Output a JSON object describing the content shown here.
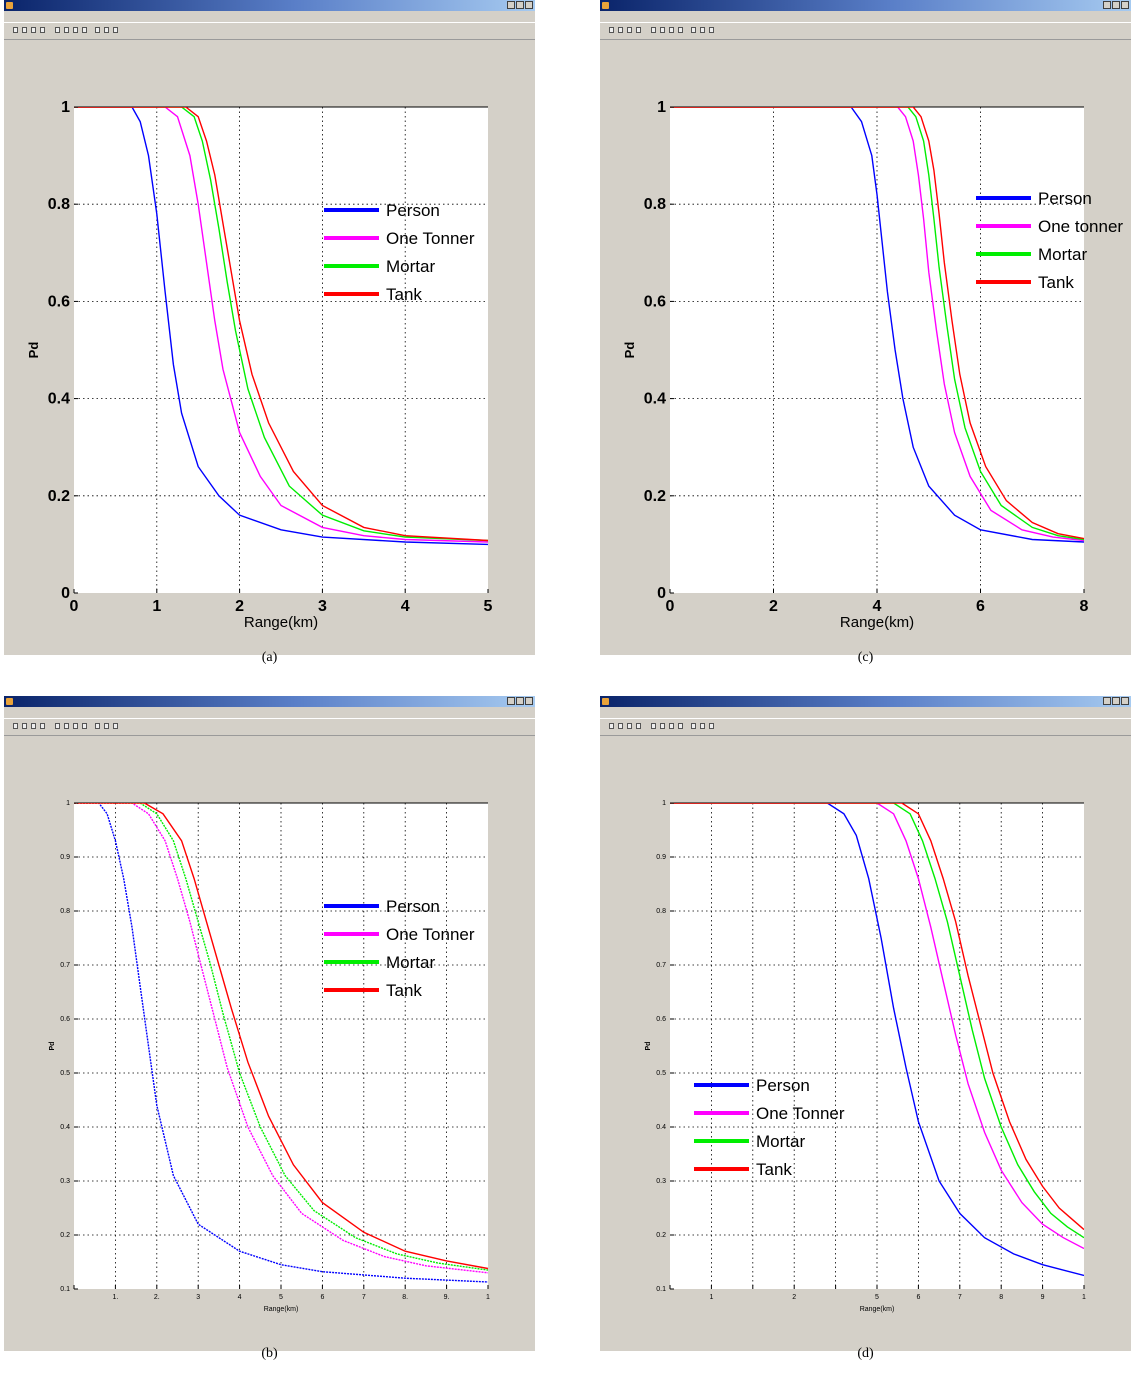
{
  "panels": [
    {
      "id": "a",
      "caption": "(a)",
      "window": {
        "left": 4,
        "top": 0
      },
      "chart_data": {
        "type": "line",
        "xlabel": "Range(km)",
        "ylabel": "Pd",
        "xlim": [
          0,
          5
        ],
        "ylim": [
          0,
          1
        ],
        "xticks": [
          0,
          1,
          2,
          3,
          4,
          5
        ],
        "yticks": [
          0,
          0.2,
          0.4,
          0.6,
          0.8,
          1
        ],
        "xtick_labels": [
          "0",
          "1",
          "2",
          "3",
          "4",
          "5"
        ],
        "ytick_labels": [
          "0",
          "0.2",
          "0.4",
          "0.6",
          "0.8",
          "1"
        ],
        "grid": true,
        "legend_position": "center-right",
        "series": [
          {
            "name": "Person",
            "color": "#0000ff",
            "x": [
              0,
              0.7,
              0.8,
              0.9,
              1.0,
              1.1,
              1.2,
              1.3,
              1.5,
              1.75,
              2.0,
              2.5,
              3.0,
              4.0,
              5.0
            ],
            "y": [
              1,
              1,
              0.97,
              0.9,
              0.78,
              0.62,
              0.47,
              0.37,
              0.26,
              0.2,
              0.16,
              0.13,
              0.115,
              0.105,
              0.1
            ]
          },
          {
            "name": "One Tonner",
            "color": "#ff00ff",
            "x": [
              0,
              1.1,
              1.25,
              1.4,
              1.5,
              1.6,
              1.7,
              1.8,
              2.0,
              2.25,
              2.5,
              3.0,
              3.5,
              4.0,
              5.0
            ],
            "y": [
              1,
              1,
              0.98,
              0.9,
              0.8,
              0.68,
              0.56,
              0.46,
              0.33,
              0.24,
              0.18,
              0.135,
              0.118,
              0.11,
              0.105
            ]
          },
          {
            "name": "Mortar",
            "color": "#00ee00",
            "x": [
              0,
              1.3,
              1.45,
              1.55,
              1.65,
              1.75,
              1.85,
              1.95,
              2.1,
              2.3,
              2.6,
              3.0,
              3.5,
              4.0,
              5.0
            ],
            "y": [
              1,
              1,
              0.98,
              0.93,
              0.85,
              0.75,
              0.64,
              0.54,
              0.42,
              0.32,
              0.22,
              0.16,
              0.128,
              0.115,
              0.108
            ]
          },
          {
            "name": "Tank",
            "color": "#ff0000",
            "x": [
              0,
              1.35,
              1.5,
              1.6,
              1.7,
              1.8,
              1.9,
              2.0,
              2.15,
              2.35,
              2.65,
              3.0,
              3.5,
              4.0,
              5.0
            ],
            "y": [
              1,
              1,
              0.98,
              0.93,
              0.86,
              0.76,
              0.66,
              0.56,
              0.45,
              0.35,
              0.25,
              0.18,
              0.135,
              0.118,
              0.108
            ]
          }
        ]
      }
    },
    {
      "id": "c",
      "caption": "(c)",
      "window": {
        "left": 600,
        "top": 0
      },
      "chart_data": {
        "type": "line",
        "xlabel": "Range(km)",
        "ylabel": "Pd",
        "xlim": [
          0,
          8
        ],
        "ylim": [
          0,
          1
        ],
        "xticks": [
          0,
          2,
          4,
          6,
          8
        ],
        "yticks": [
          0,
          0.2,
          0.4,
          0.6,
          0.8,
          1
        ],
        "xtick_labels": [
          "0",
          "2",
          "4",
          "6",
          "8"
        ],
        "ytick_labels": [
          "0",
          "0.2",
          "0.4",
          "0.6",
          "0.8",
          "1"
        ],
        "grid": true,
        "legend_position": "upper-right",
        "series": [
          {
            "name": "Person",
            "color": "#0000ff",
            "x": [
              0,
              3.5,
              3.7,
              3.9,
              4.0,
              4.1,
              4.2,
              4.35,
              4.5,
              4.7,
              5.0,
              5.5,
              6.0,
              7.0,
              8.0
            ],
            "y": [
              1,
              1,
              0.97,
              0.9,
              0.82,
              0.72,
              0.62,
              0.5,
              0.4,
              0.3,
              0.22,
              0.16,
              0.13,
              0.11,
              0.105
            ]
          },
          {
            "name": "One tonner",
            "color": "#ff00ff",
            "x": [
              0,
              4.4,
              4.55,
              4.7,
              4.8,
              4.9,
              5.0,
              5.15,
              5.3,
              5.5,
              5.8,
              6.2,
              6.8,
              7.4,
              8.0
            ],
            "y": [
              1,
              1,
              0.98,
              0.93,
              0.86,
              0.77,
              0.66,
              0.54,
              0.43,
              0.33,
              0.24,
              0.17,
              0.13,
              0.115,
              0.108
            ]
          },
          {
            "name": "Mortar",
            "color": "#00ee00",
            "x": [
              0,
              4.6,
              4.75,
              4.9,
              5.0,
              5.1,
              5.2,
              5.35,
              5.5,
              5.7,
              6.0,
              6.4,
              7.0,
              7.5,
              8.0
            ],
            "y": [
              1,
              1,
              0.98,
              0.93,
              0.86,
              0.77,
              0.67,
              0.55,
              0.44,
              0.34,
              0.25,
              0.18,
              0.135,
              0.118,
              0.11
            ]
          },
          {
            "name": "Tank",
            "color": "#ff0000",
            "x": [
              0,
              4.7,
              4.85,
              5.0,
              5.1,
              5.2,
              5.3,
              5.45,
              5.6,
              5.8,
              6.1,
              6.5,
              7.0,
              7.5,
              8.0
            ],
            "y": [
              1,
              1,
              0.98,
              0.93,
              0.87,
              0.78,
              0.68,
              0.56,
              0.45,
              0.35,
              0.26,
              0.19,
              0.145,
              0.122,
              0.112
            ]
          }
        ]
      }
    },
    {
      "id": "b",
      "caption": "(b)",
      "window": {
        "left": 4,
        "top": 696
      },
      "chart_data": {
        "type": "line",
        "xlabel": "Range(km)",
        "ylabel": "Pd",
        "xlim": [
          0,
          10
        ],
        "ylim": [
          0.1,
          1
        ],
        "xticks": [
          0,
          1,
          2,
          3,
          4,
          5,
          6,
          7,
          8,
          9,
          10
        ],
        "yticks": [
          0.1,
          0.2,
          0.3,
          0.4,
          0.5,
          0.6,
          0.7,
          0.8,
          0.9,
          1
        ],
        "xtick_labels": [
          "",
          "1.",
          "2.",
          "3",
          "4",
          "5",
          "6",
          "7",
          "8.",
          "9.",
          "1"
        ],
        "ytick_labels": [
          "0.1",
          "0.2",
          "0.3",
          "0.4",
          "0.5",
          "0.6",
          "0.7",
          "0.8",
          "0.9",
          "1"
        ],
        "grid": true,
        "legend_position": "center-right",
        "series": [
          {
            "name": "Person",
            "color": "#0000ff",
            "dashed": true,
            "x": [
              0,
              0.6,
              0.8,
              1.0,
              1.2,
              1.4,
              1.6,
              1.8,
              2.0,
              2.4,
              3.0,
              4.0,
              5.0,
              6.0,
              8.0,
              10.0
            ],
            "y": [
              1,
              1,
              0.98,
              0.93,
              0.86,
              0.77,
              0.66,
              0.55,
              0.44,
              0.31,
              0.22,
              0.17,
              0.145,
              0.132,
              0.12,
              0.113
            ]
          },
          {
            "name": "One Tonner",
            "color": "#ff00ff",
            "dashed": true,
            "x": [
              0,
              1.4,
              1.8,
              2.2,
              2.5,
              2.8,
              3.1,
              3.4,
              3.7,
              4.2,
              4.8,
              5.5,
              6.5,
              7.5,
              8.5,
              10.0
            ],
            "y": [
              1,
              1,
              0.98,
              0.93,
              0.86,
              0.78,
              0.69,
              0.6,
              0.51,
              0.4,
              0.31,
              0.24,
              0.19,
              0.16,
              0.143,
              0.13
            ]
          },
          {
            "name": "Mortar",
            "color": "#00ee00",
            "dashed": true,
            "x": [
              0,
              1.6,
              2.0,
              2.4,
              2.7,
              3.0,
              3.3,
              3.6,
              4.0,
              4.5,
              5.1,
              5.8,
              6.8,
              7.8,
              8.8,
              10.0
            ],
            "y": [
              1,
              1,
              0.98,
              0.93,
              0.86,
              0.78,
              0.7,
              0.61,
              0.5,
              0.4,
              0.31,
              0.245,
              0.195,
              0.165,
              0.148,
              0.135
            ]
          },
          {
            "name": "Tank",
            "color": "#ff0000",
            "x": [
              0,
              1.7,
              2.15,
              2.6,
              2.9,
              3.2,
              3.5,
              3.8,
              4.2,
              4.7,
              5.3,
              6.0,
              7.0,
              8.0,
              9.0,
              10.0
            ],
            "y": [
              1,
              1,
              0.98,
              0.93,
              0.86,
              0.78,
              0.7,
              0.62,
              0.52,
              0.42,
              0.33,
              0.26,
              0.205,
              0.17,
              0.152,
              0.138
            ]
          }
        ]
      }
    },
    {
      "id": "d",
      "caption": "(d)",
      "window": {
        "left": 600,
        "top": 696
      },
      "chart_data": {
        "type": "line",
        "xlabel": "Range(km)",
        "ylabel": "Pd",
        "xlim": [
          0,
          10
        ],
        "ylim": [
          0.1,
          1
        ],
        "xticks": [
          0,
          1,
          2,
          3,
          4,
          5,
          6,
          7,
          8,
          9,
          10
        ],
        "yticks": [
          0.1,
          0.2,
          0.3,
          0.4,
          0.5,
          0.6,
          0.7,
          0.8,
          0.9,
          1
        ],
        "xtick_labels": [
          "",
          "1",
          "",
          "2",
          "",
          "5",
          "6",
          "7",
          "8",
          "9",
          "1"
        ],
        "ytick_labels": [
          "0.1",
          "0.2",
          "0.3",
          "0.4",
          "0.5",
          "0.6",
          "0.7",
          "0.8",
          "0.9",
          "1"
        ],
        "grid": true,
        "legend_position": "lower-left",
        "series": [
          {
            "name": "Person",
            "color": "#0000ff",
            "x": [
              0,
              3.8,
              4.2,
              4.5,
              4.8,
              5.1,
              5.4,
              5.7,
              6.0,
              6.5,
              7.0,
              7.6,
              8.3,
              9.0,
              10.0
            ],
            "y": [
              1,
              1,
              0.98,
              0.94,
              0.86,
              0.75,
              0.62,
              0.51,
              0.41,
              0.3,
              0.24,
              0.195,
              0.165,
              0.145,
              0.125
            ]
          },
          {
            "name": "One Tonner",
            "color": "#ff00ff",
            "x": [
              0,
              5.0,
              5.4,
              5.7,
              6.0,
              6.3,
              6.6,
              6.9,
              7.2,
              7.6,
              8.0,
              8.5,
              9.0,
              9.5,
              10.0
            ],
            "y": [
              1,
              1,
              0.98,
              0.93,
              0.86,
              0.77,
              0.67,
              0.57,
              0.48,
              0.39,
              0.32,
              0.26,
              0.22,
              0.195,
              0.175
            ]
          },
          {
            "name": "Mortar",
            "color": "#00ee00",
            "x": [
              0,
              5.4,
              5.8,
              6.1,
              6.4,
              6.7,
              7.0,
              7.3,
              7.6,
              8.0,
              8.4,
              8.8,
              9.2,
              9.6,
              10.0
            ],
            "y": [
              1,
              1,
              0.98,
              0.93,
              0.86,
              0.78,
              0.68,
              0.58,
              0.49,
              0.4,
              0.33,
              0.28,
              0.24,
              0.215,
              0.195
            ]
          },
          {
            "name": "Tank",
            "color": "#ff0000",
            "x": [
              0,
              5.6,
              6.0,
              6.3,
              6.6,
              6.9,
              7.2,
              7.5,
              7.8,
              8.2,
              8.6,
              9.0,
              9.4,
              9.7,
              10.0
            ],
            "y": [
              1,
              1,
              0.98,
              0.93,
              0.86,
              0.78,
              0.68,
              0.59,
              0.5,
              0.41,
              0.34,
              0.29,
              0.25,
              0.23,
              0.21
            ]
          }
        ]
      }
    }
  ]
}
